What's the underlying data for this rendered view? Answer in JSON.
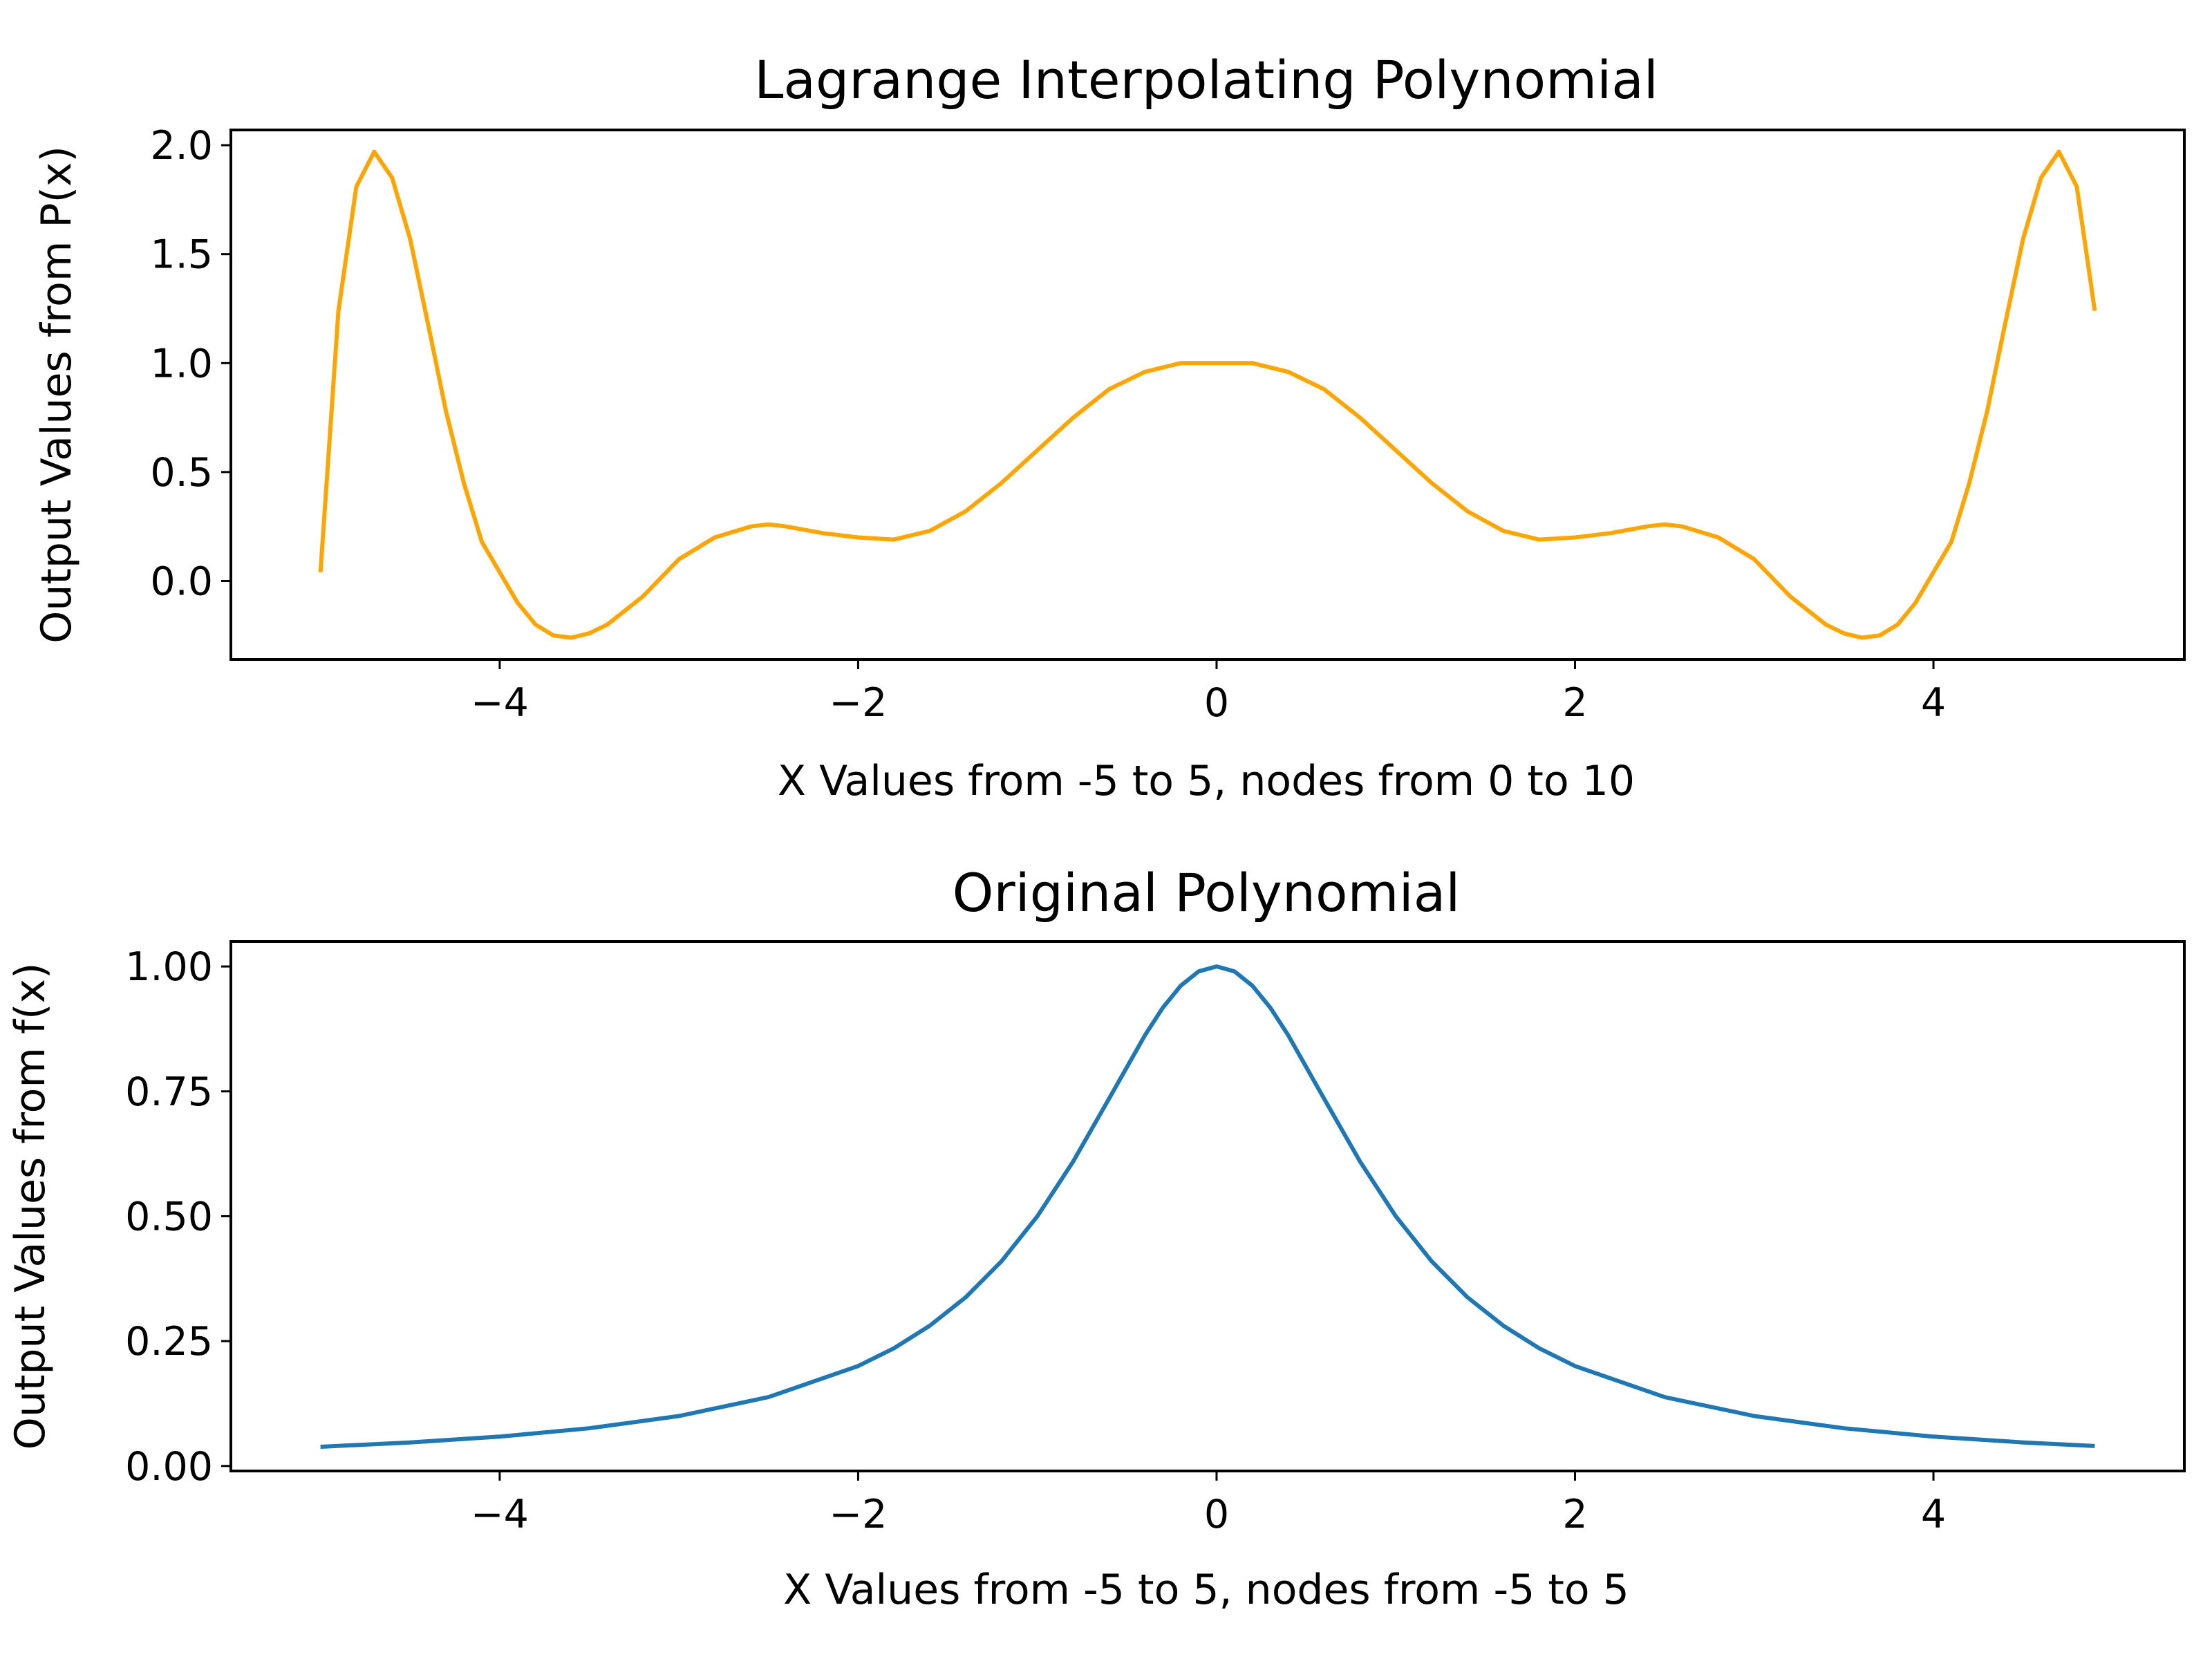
{
  "chart_data": [
    {
      "type": "line",
      "title": "Lagrange Interpolating Polynomial",
      "xlabel": "X Values from -5 to 5, nodes from 0 to 10",
      "ylabel": "Output Values from P(x)",
      "xlim": [
        -5.5,
        5.4
      ],
      "ylim": [
        -0.36,
        2.07
      ],
      "xticks": [
        -4,
        -2,
        0,
        2,
        4
      ],
      "xtick_labels": [
        "−4",
        "−2",
        "0",
        "2",
        "4"
      ],
      "yticks": [
        0.0,
        0.5,
        1.0,
        1.5,
        2.0
      ],
      "ytick_labels": [
        "0.0",
        "0.5",
        "1.0",
        "1.5",
        "2.0"
      ],
      "grid": false,
      "color": "#ffa500",
      "x": [
        -5.0,
        -4.9,
        -4.8,
        -4.7,
        -4.6,
        -4.5,
        -4.4,
        -4.3,
        -4.2,
        -4.1,
        -4.0,
        -3.9,
        -3.8,
        -3.7,
        -3.6,
        -3.5,
        -3.4,
        -3.2,
        -3.0,
        -2.8,
        -2.6,
        -2.5,
        -2.4,
        -2.2,
        -2.0,
        -1.8,
        -1.6,
        -1.4,
        -1.2,
        -1.0,
        -0.8,
        -0.6,
        -0.4,
        -0.2,
        0.0,
        0.2,
        0.4,
        0.6,
        0.8,
        1.0,
        1.2,
        1.4,
        1.6,
        1.8,
        2.0,
        2.2,
        2.4,
        2.5,
        2.6,
        2.8,
        3.0,
        3.2,
        3.4,
        3.5,
        3.6,
        3.7,
        3.8,
        3.9,
        4.0,
        4.1,
        4.2,
        4.3,
        4.4,
        4.5,
        4.6,
        4.7,
        4.8,
        4.9
      ],
      "y": [
        0.04,
        1.24,
        1.81,
        1.97,
        1.85,
        1.57,
        1.18,
        0.78,
        0.45,
        0.18,
        0.04,
        -0.1,
        -0.2,
        -0.25,
        -0.26,
        -0.24,
        -0.2,
        -0.07,
        0.1,
        0.2,
        0.25,
        0.26,
        0.25,
        0.22,
        0.2,
        0.19,
        0.23,
        0.32,
        0.45,
        0.6,
        0.75,
        0.88,
        0.96,
        1.0,
        1.0,
        1.0,
        0.96,
        0.88,
        0.75,
        0.6,
        0.45,
        0.32,
        0.23,
        0.19,
        0.2,
        0.22,
        0.25,
        0.26,
        0.25,
        0.2,
        0.1,
        -0.07,
        -0.2,
        -0.24,
        -0.26,
        -0.25,
        -0.2,
        -0.1,
        0.04,
        0.18,
        0.45,
        0.78,
        1.18,
        1.57,
        1.85,
        1.97,
        1.81,
        1.24
      ]
    },
    {
      "type": "line",
      "title": "Original Polynomial",
      "xlabel": "X Values from -5 to 5, nodes from -5 to 5",
      "ylabel": "Output Values from f(x)",
      "xlim": [
        -5.5,
        5.4
      ],
      "ylim": [
        -0.01,
        1.05
      ],
      "xticks": [
        -4,
        -2,
        0,
        2,
        4
      ],
      "xtick_labels": [
        "−4",
        "−2",
        "0",
        "2",
        "4"
      ],
      "yticks": [
        0.0,
        0.25,
        0.5,
        0.75,
        1.0
      ],
      "ytick_labels": [
        "0.00",
        "0.25",
        "0.50",
        "0.75",
        "1.00"
      ],
      "grid": false,
      "color": "#1f77b4",
      "x": [
        -5.0,
        -4.5,
        -4.0,
        -3.5,
        -3.0,
        -2.5,
        -2.0,
        -1.8,
        -1.6,
        -1.4,
        -1.2,
        -1.0,
        -0.8,
        -0.6,
        -0.4,
        -0.3,
        -0.2,
        -0.1,
        0.0,
        0.1,
        0.2,
        0.3,
        0.4,
        0.6,
        0.8,
        1.0,
        1.2,
        1.4,
        1.6,
        1.8,
        2.0,
        2.5,
        3.0,
        3.5,
        4.0,
        4.5,
        4.9
      ],
      "y": [
        0.0385,
        0.0471,
        0.0588,
        0.0755,
        0.1,
        0.1379,
        0.2,
        0.2358,
        0.2809,
        0.3378,
        0.4098,
        0.5,
        0.6098,
        0.7353,
        0.8621,
        0.9174,
        0.9615,
        0.9901,
        1.0,
        0.9901,
        0.9615,
        0.9174,
        0.8621,
        0.7353,
        0.6098,
        0.5,
        0.4098,
        0.3378,
        0.2809,
        0.2358,
        0.2,
        0.1379,
        0.1,
        0.0755,
        0.0588,
        0.0471,
        0.04
      ]
    }
  ]
}
